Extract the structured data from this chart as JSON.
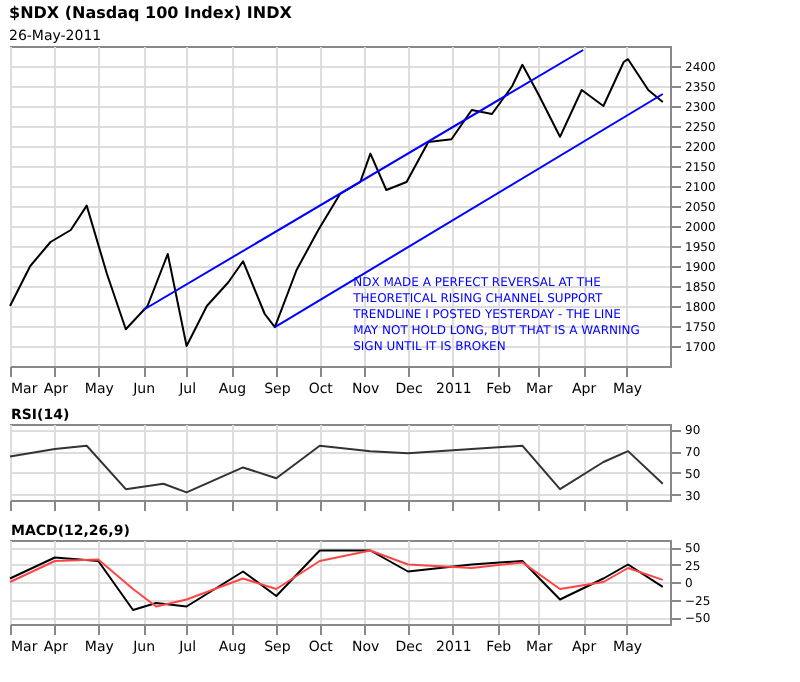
{
  "chart_data": [
    {
      "type": "line",
      "title": "$NDX (Nasdaq 100 Index) INDX",
      "subtitle": "26-May-2011",
      "annotations": [
        "NDX MADE A PERFECT REVERSAL AT THE THEORETICAL RISING CHANNEL SUPPORT TRENDLINE I POSTED YESTERDAY - THE LINE MAY NOT HOLD LONG, BUT THAT IS A WARNING SIGN UNTIL IT IS BROKEN"
      ],
      "x": [
        "2010-03-01",
        "2010-03-15",
        "2010-03-29",
        "2010-04-12",
        "2010-04-23",
        "2010-05-07",
        "2010-05-20",
        "2010-06-04",
        "2010-06-18",
        "2010-07-01",
        "2010-07-15",
        "2010-07-30",
        "2010-08-09",
        "2010-08-24",
        "2010-08-31",
        "2010-09-15",
        "2010-09-30",
        "2010-10-15",
        "2010-10-29",
        "2010-11-05",
        "2010-11-16",
        "2010-11-30",
        "2010-12-15",
        "2010-12-31",
        "2011-01-14",
        "2011-01-28",
        "2011-02-11",
        "2011-02-18",
        "2011-03-01",
        "2011-03-16",
        "2011-03-31",
        "2011-04-15",
        "2011-04-29",
        "2011-05-02",
        "2011-05-16",
        "2011-05-26"
      ],
      "series": [
        {
          "color": "#000000",
          "values": [
            1800,
            1900,
            1960,
            1990,
            2051,
            1880,
            1742,
            1800,
            1930,
            1700,
            1800,
            1860,
            1912,
            1780,
            1747,
            1890,
            1990,
            2080,
            2110,
            2181,
            2090,
            2110,
            2210,
            2217,
            2290,
            2280,
            2350,
            2403,
            2330,
            2223,
            2340,
            2300,
            2410,
            2417,
            2340,
            2310
          ]
        },
        {
          "type": "line",
          "color": "#0000ff",
          "x": [
            "2010-06-01",
            "2011-04-01"
          ],
          "values": [
            1790,
            2440
          ]
        },
        {
          "type": "line",
          "color": "#0000ff",
          "x": [
            "2010-08-31",
            "2011-05-26"
          ],
          "values": [
            1747,
            2330
          ]
        }
      ],
      "xlim": [
        "2010-03-01",
        "2011-05-31"
      ],
      "xticks": [
        {
          "value": "2010-03-01",
          "label": "Mar"
        },
        {
          "value": "2010-04-01",
          "label": "Apr"
        },
        {
          "value": "2010-05-01",
          "label": "May"
        },
        {
          "value": "2010-06-01",
          "label": "Jun"
        },
        {
          "value": "2010-07-01",
          "label": "Jul"
        },
        {
          "value": "2010-08-01",
          "label": "Aug"
        },
        {
          "value": "2010-09-01",
          "label": "Sep"
        },
        {
          "value": "2010-10-01",
          "label": "Oct"
        },
        {
          "value": "2010-11-01",
          "label": "Nov"
        },
        {
          "value": "2010-12-01",
          "label": "Dec"
        },
        {
          "value": "2011-01-01",
          "label": "2011"
        },
        {
          "value": "2011-02-01",
          "label": "Feb"
        },
        {
          "value": "2011-03-01",
          "label": "Mar"
        },
        {
          "value": "2011-04-01",
          "label": "Apr"
        },
        {
          "value": "2011-05-01",
          "label": "May"
        }
      ],
      "ylim": [
        1650,
        2450
      ],
      "yticks": [
        1700,
        1750,
        1800,
        1850,
        1900,
        1950,
        2000,
        2050,
        2100,
        2150,
        2200,
        2250,
        2300,
        2350,
        2400
      ],
      "grid": true
    },
    {
      "type": "line",
      "ylabel": "RSI(14)",
      "x": [
        "2010-03-01",
        "2010-04-01",
        "2010-04-23",
        "2010-05-20",
        "2010-06-15",
        "2010-07-01",
        "2010-08-09",
        "2010-09-01",
        "2010-10-01",
        "2010-11-05",
        "2010-12-01",
        "2011-01-14",
        "2011-02-18",
        "2011-03-16",
        "2011-04-15",
        "2011-05-02",
        "2011-05-26"
      ],
      "series": [
        {
          "color": "#333333",
          "values": [
            65,
            72,
            75,
            35,
            40,
            32,
            55,
            45,
            75,
            70,
            68,
            72,
            75,
            35,
            60,
            70,
            40
          ]
        }
      ],
      "xlim": [
        "2010-03-01",
        "2011-05-31"
      ],
      "xticks": [
        {
          "value": "2010-03-01",
          "label": null
        },
        {
          "value": "2010-04-01",
          "label": null
        },
        {
          "value": "2010-05-01",
          "label": null
        },
        {
          "value": "2010-06-01",
          "label": null
        },
        {
          "value": "2010-07-01",
          "label": null
        },
        {
          "value": "2010-08-01",
          "label": null
        },
        {
          "value": "2010-09-01",
          "label": null
        },
        {
          "value": "2010-10-01",
          "label": null
        },
        {
          "value": "2010-11-01",
          "label": null
        },
        {
          "value": "2010-12-01",
          "label": null
        },
        {
          "value": "2011-01-01",
          "label": null
        },
        {
          "value": "2011-02-01",
          "label": null
        },
        {
          "value": "2011-03-01",
          "label": null
        },
        {
          "value": "2011-04-01",
          "label": null
        },
        {
          "value": "2011-05-01",
          "label": null
        }
      ],
      "ylim": [
        25,
        95
      ],
      "yticks": [
        30,
        50,
        70,
        90
      ],
      "grid": true,
      "tick_labels": "y"
    },
    {
      "type": "line",
      "ylabel": "MACD(12,26,9)",
      "x": [
        "2010-03-01",
        "2010-04-01",
        "2010-05-01",
        "2010-05-25",
        "2010-06-10",
        "2010-07-01",
        "2010-08-09",
        "2010-09-01",
        "2010-10-01",
        "2010-11-05",
        "2010-12-01",
        "2011-01-14",
        "2011-02-18",
        "2011-03-16",
        "2011-04-15",
        "2011-05-02",
        "2011-05-26"
      ],
      "series": [
        {
          "color": "#000000",
          "values": [
            5,
            35,
            30,
            -40,
            -30,
            -35,
            15,
            -20,
            45,
            45,
            15,
            25,
            30,
            -25,
            5,
            25,
            -7
          ]
        },
        {
          "color": "#ff4444",
          "values": [
            0,
            30,
            32,
            -10,
            -35,
            -25,
            5,
            -10,
            30,
            45,
            25,
            20,
            28,
            -10,
            0,
            20,
            3
          ]
        }
      ],
      "xlim": [
        "2010-03-01",
        "2011-05-31"
      ],
      "xticks": [
        {
          "value": "2010-03-01",
          "label": "Mar"
        },
        {
          "value": "2010-04-01",
          "label": "Apr"
        },
        {
          "value": "2010-05-01",
          "label": "May"
        },
        {
          "value": "2010-06-01",
          "label": "Jun"
        },
        {
          "value": "2010-07-01",
          "label": "Jul"
        },
        {
          "value": "2010-08-01",
          "label": "Aug"
        },
        {
          "value": "2010-09-01",
          "label": "Sep"
        },
        {
          "value": "2010-10-01",
          "label": "Oct"
        },
        {
          "value": "2010-11-01",
          "label": "Nov"
        },
        {
          "value": "2010-12-01",
          "label": "Dec"
        },
        {
          "value": "2011-01-01",
          "label": "2011"
        },
        {
          "value": "2011-02-01",
          "label": "Feb"
        },
        {
          "value": "2011-03-01",
          "label": "Mar"
        },
        {
          "value": "2011-04-01",
          "label": "Apr"
        },
        {
          "value": "2011-05-01",
          "label": "May"
        }
      ],
      "ylim": [
        -60,
        60
      ],
      "yticks": [
        -50,
        -25,
        0,
        25,
        50
      ],
      "grid": true
    }
  ]
}
